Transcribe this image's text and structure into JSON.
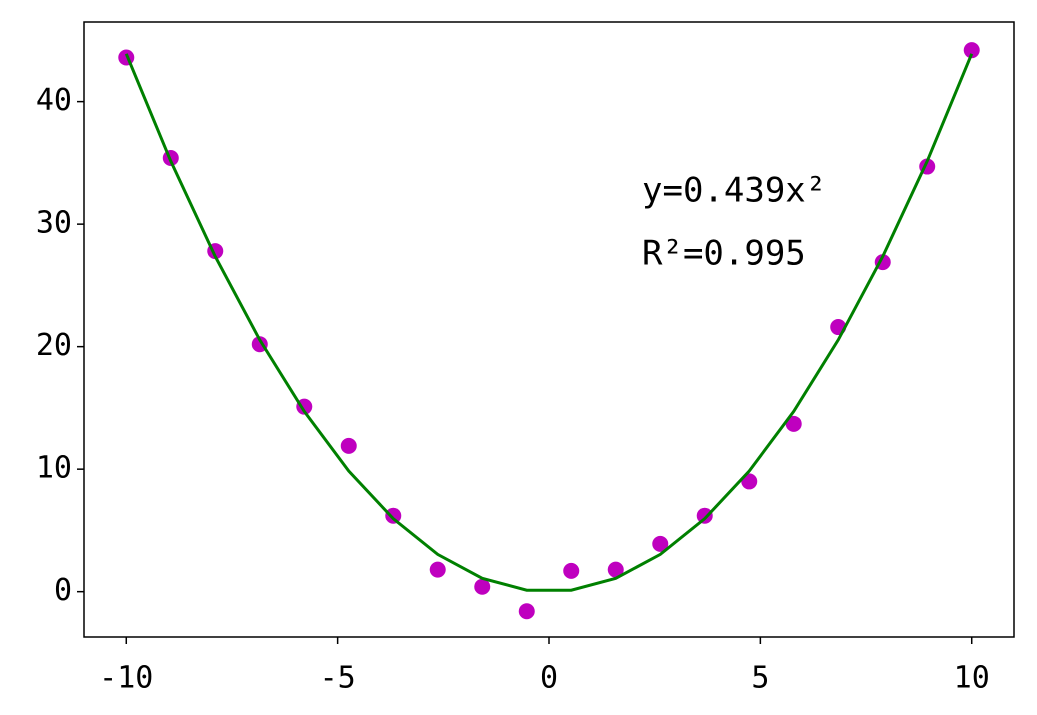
{
  "chart_data": {
    "type": "scatter",
    "x": [
      -10,
      -8.947,
      -7.895,
      -6.842,
      -5.789,
      -4.737,
      -3.684,
      -2.632,
      -1.579,
      -0.526,
      0.526,
      1.579,
      2.632,
      3.684,
      4.737,
      5.789,
      6.842,
      7.895,
      8.947,
      10
    ],
    "series": [
      {
        "type": "scatter",
        "color": "#bf00bf",
        "values": [
          43.6,
          35.4,
          27.8,
          20.2,
          15.1,
          11.9,
          6.2,
          1.8,
          0.4,
          -1.6,
          1.7,
          1.8,
          3.9,
          6.2,
          9.0,
          13.7,
          21.6,
          26.9,
          34.7,
          44.2
        ]
      },
      {
        "type": "line",
        "color": "#008000",
        "values": [
          43.9,
          35.14,
          27.36,
          20.55,
          14.71,
          9.85,
          5.96,
          3.04,
          1.09,
          0.12,
          0.12,
          1.09,
          3.04,
          5.96,
          9.85,
          14.71,
          20.55,
          27.36,
          35.14,
          43.9
        ]
      }
    ],
    "annotations": [
      "y=0.439x²",
      "R²=0.995"
    ],
    "xlim": [
      -11,
      11
    ],
    "xticks": [
      -10,
      -5,
      0,
      5,
      10
    ],
    "ylim": [
      -3.7,
      46.5
    ],
    "yticks": [
      0,
      10,
      20,
      30,
      40
    ],
    "grid": false
  }
}
